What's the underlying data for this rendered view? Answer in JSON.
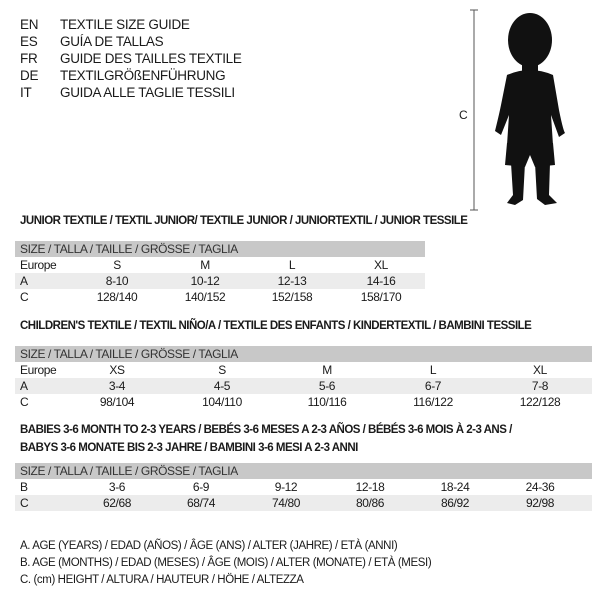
{
  "languages": [
    {
      "code": "EN",
      "text": "TEXTILE SIZE GUIDE"
    },
    {
      "code": "ES",
      "text": "GUÍA DE TALLAS"
    },
    {
      "code": "FR",
      "text": "GUIDE DES TAILLES TEXTILE"
    },
    {
      "code": "DE",
      "text": "TEXTILGRÖßENFÜHRUNG"
    },
    {
      "code": "IT",
      "text": "GUIDA ALLE TAGLIE TESSILI"
    }
  ],
  "figure": {
    "measure_label": "C"
  },
  "size_header": "SIZE / TALLA / TAILLE / GRÖSSE / TAGLIA",
  "junior": {
    "title": "JUNIOR TEXTILE / TEXTIL JUNIOR/ TEXTILE JUNIOR / JUNIORTEXTIL / JUNIOR TESSILE",
    "rows": [
      {
        "label": "Europe",
        "values": [
          "S",
          "M",
          "L",
          "XL"
        ]
      },
      {
        "label": "A",
        "values": [
          "8-10",
          "10-12",
          "12-13",
          "14-16"
        ]
      },
      {
        "label": "C",
        "values": [
          "128/140",
          "140/152",
          "152/158",
          "158/170"
        ]
      }
    ]
  },
  "children": {
    "title": "CHILDREN'S TEXTILE / TEXTIL NIÑO/A / TEXTILE DES ENFANTS / KINDERTEXTIL / BAMBINI TESSILE",
    "rows": [
      {
        "label": "Europe",
        "values": [
          "XS",
          "S",
          "M",
          "L",
          "XL"
        ]
      },
      {
        "label": "A",
        "values": [
          "3-4",
          "4-5",
          "5-6",
          "6-7",
          "7-8"
        ]
      },
      {
        "label": "C",
        "values": [
          "98/104",
          "104/110",
          "110/116",
          "116/122",
          "122/128"
        ]
      }
    ]
  },
  "babies": {
    "title_line1": "BABIES 3-6 MONTH TO 2-3 YEARS / BEBÉS 3-6 MESES A 2-3 AÑOS / BÉBÉS 3-6 MOIS À 2-3 ANS /",
    "title_line2": "BABYS 3-6 MONATE BIS 2-3 JAHRE / BAMBINI 3-6 MESI A 2-3 ANNI",
    "rows": [
      {
        "label": "B",
        "values": [
          "3-6",
          "6-9",
          "9-12",
          "12-18",
          "18-24",
          "24-36"
        ]
      },
      {
        "label": "C",
        "values": [
          "62/68",
          "68/74",
          "74/80",
          "80/86",
          "86/92",
          "92/98"
        ]
      }
    ]
  },
  "legend": [
    "A. AGE (YEARS) / EDAD (AÑOS) / ÂGE (ANS) / ALTER (JAHRE) / ETÀ (ANNI)",
    "B. AGE (MONTHS) / EDAD (MESES) / ÂGE (MOIS) / ALTER (MONATE) / ETÀ (MESI)",
    "C. (cm) HEIGHT / ALTURA / HAUTEUR / HÖHE / ALTEZZA"
  ]
}
